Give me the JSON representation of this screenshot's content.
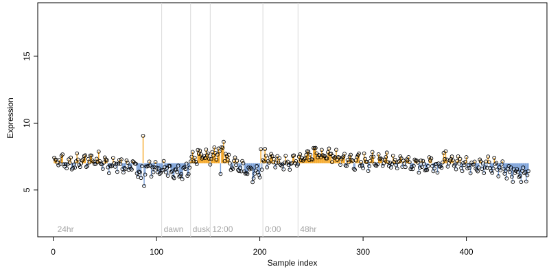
{
  "chart_data": {
    "type": "scatter",
    "title": "",
    "xlabel": "Sample index",
    "ylabel": "Expression",
    "xlim": [
      -15,
      478
    ],
    "ylim": [
      1.5,
      19.0
    ],
    "x_ticks": [
      0,
      100,
      200,
      300,
      400
    ],
    "x_tick_labels": [
      "0",
      "100",
      "200",
      "300",
      "400"
    ],
    "y_ticks": [
      5,
      10,
      15
    ],
    "y_tick_labels": [
      "5",
      "10",
      "15"
    ],
    "grid": false,
    "baseline": 7.0,
    "colors": {
      "above": "#f5a623",
      "below": "#7aa0d8",
      "point_edge": "#000000",
      "vline": "#d9d9d9",
      "annotation": "#a6a6a6"
    },
    "markers": [
      {
        "x": 2,
        "label": "24hr",
        "line": false
      },
      {
        "x": 105,
        "label": "dawn",
        "line": true
      },
      {
        "x": 133,
        "label": "dusk",
        "line": true
      },
      {
        "x": 152,
        "label": "12:00",
        "line": true
      },
      {
        "x": 203,
        "label": "0:00",
        "line": true
      },
      {
        "x": 237,
        "label": "48hr",
        "line": true
      }
    ],
    "n_points": 460,
    "anchors": [
      [
        1,
        7.0
      ],
      [
        5,
        7.4
      ],
      [
        10,
        7.0
      ],
      [
        20,
        7.0
      ],
      [
        30,
        7.2
      ],
      [
        40,
        7.3
      ],
      [
        50,
        7.0
      ],
      [
        60,
        6.9
      ],
      [
        70,
        6.8
      ],
      [
        80,
        6.6
      ],
      [
        86,
        6.5
      ],
      [
        90,
        6.8
      ],
      [
        100,
        6.5
      ],
      [
        110,
        6.6
      ],
      [
        120,
        6.3
      ],
      [
        130,
        6.6
      ],
      [
        135,
        7.5
      ],
      [
        150,
        7.6
      ],
      [
        160,
        7.8
      ],
      [
        165,
        7.9
      ],
      [
        170,
        6.9
      ],
      [
        180,
        6.7
      ],
      [
        190,
        6.3
      ],
      [
        200,
        6.2
      ],
      [
        205,
        7.5
      ],
      [
        220,
        7.0
      ],
      [
        235,
        7.2
      ],
      [
        245,
        7.6
      ],
      [
        255,
        7.7
      ],
      [
        270,
        7.5
      ],
      [
        285,
        7.2
      ],
      [
        300,
        7.1
      ],
      [
        320,
        7.3
      ],
      [
        340,
        7.0
      ],
      [
        360,
        6.9
      ],
      [
        380,
        7.2
      ],
      [
        400,
        6.9
      ],
      [
        420,
        6.8
      ],
      [
        440,
        6.5
      ],
      [
        450,
        6.2
      ],
      [
        460,
        6.3
      ]
    ],
    "outliers": [
      {
        "x": 87,
        "y": 9.05
      },
      {
        "x": 88,
        "y": 5.3
      },
      {
        "x": 85,
        "y": 5.9
      },
      {
        "x": 165,
        "y": 8.6
      },
      {
        "x": 163,
        "y": 8.2
      },
      {
        "x": 160,
        "y": 8.1
      },
      {
        "x": 162,
        "y": 6.2
      },
      {
        "x": 201,
        "y": 8.05
      },
      {
        "x": 267,
        "y": 8.1
      },
      {
        "x": 453,
        "y": 5.6
      },
      {
        "x": 380,
        "y": 7.9
      },
      {
        "x": 372,
        "y": 6.3
      }
    ]
  }
}
